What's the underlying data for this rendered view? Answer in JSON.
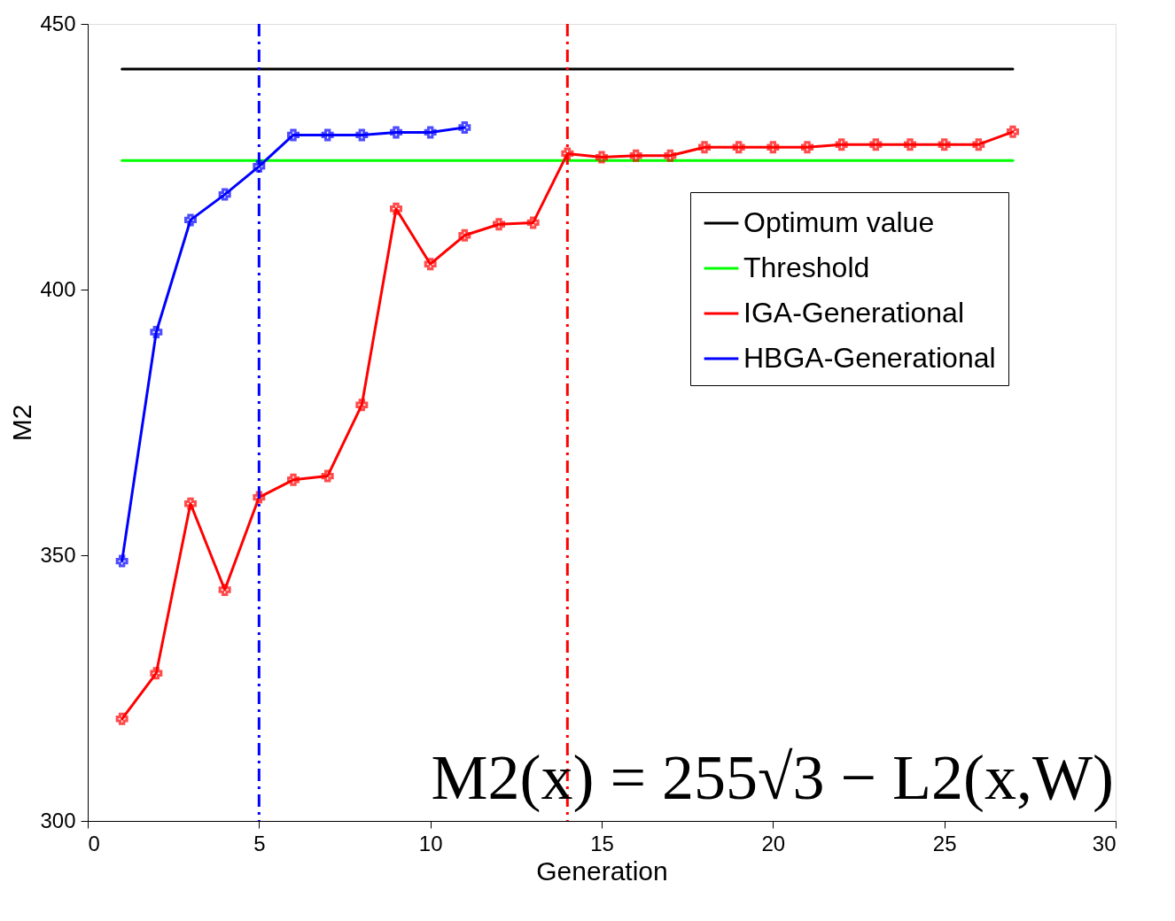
{
  "chart_data": {
    "type": "line",
    "xlabel": "Generation",
    "ylabel": "M2",
    "xlim": [
      0,
      30
    ],
    "xticks": [
      0,
      5,
      10,
      15,
      20,
      25,
      30
    ],
    "ylim": [
      300,
      450
    ],
    "yticks": [
      300,
      350,
      400,
      450
    ],
    "grid": false,
    "legend": "right",
    "series": [
      {
        "name": "Optimum value",
        "color": "#000000",
        "marker": "none",
        "x": [
          1,
          27
        ],
        "values": [
          441.5,
          441.5
        ]
      },
      {
        "name": "Threshold",
        "color": "#00ff00",
        "marker": "none",
        "x": [
          1,
          27
        ],
        "values": [
          424.3,
          424.3
        ]
      },
      {
        "name": "IGA-Generational",
        "color": "#ff0000",
        "marker": "cross",
        "x": [
          1,
          2,
          3,
          4,
          5,
          6,
          7,
          8,
          9,
          10,
          11,
          12,
          13,
          14,
          15,
          16,
          17,
          18,
          19,
          20,
          21,
          22,
          23,
          24,
          25,
          26,
          27
        ],
        "values": [
          319.2,
          327.8,
          359.7,
          343.5,
          360.9,
          364.2,
          364.9,
          378.3,
          415.2,
          404.8,
          410.2,
          412.3,
          412.6,
          425.6,
          424.9,
          425.2,
          425.2,
          426.8,
          426.8,
          426.8,
          426.8,
          427.3,
          427.3,
          427.3,
          427.3,
          427.3,
          429.7
        ]
      },
      {
        "name": "HBGA-Generational",
        "color": "#0000ff",
        "marker": "cross",
        "x": [
          1,
          2,
          3,
          4,
          5,
          6,
          7,
          8,
          9,
          10,
          11
        ],
        "values": [
          348.9,
          392.0,
          413.1,
          417.9,
          423.2,
          429.1,
          429.1,
          429.1,
          429.6,
          429.6,
          430.5
        ]
      }
    ],
    "ref_lines": [
      {
        "axis": "x",
        "value": 5,
        "color": "#0000ff",
        "line_style": "dashed"
      },
      {
        "axis": "x",
        "value": 14,
        "color": "#ff0000",
        "line_style": "dashed"
      }
    ],
    "annotations": [
      "M2(x) = 255√3 − L2(x,W)"
    ]
  }
}
